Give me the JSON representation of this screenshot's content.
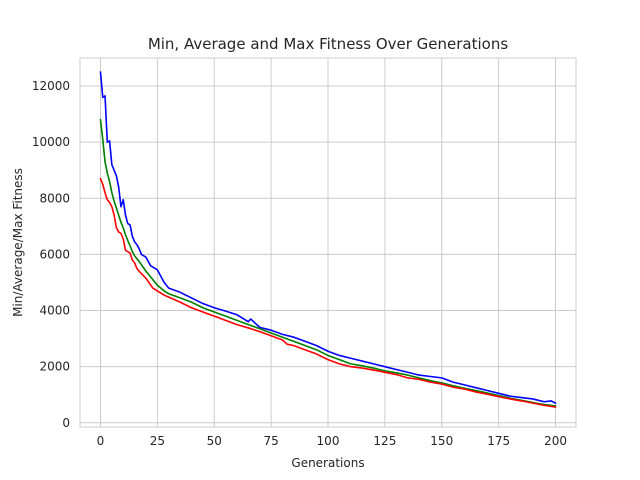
{
  "chart_data": {
    "type": "line",
    "title": "Min, Average and Max Fitness Over Generations",
    "xlabel": "Generations",
    "ylabel": "Min/Average/Max Fitness",
    "xlim": [
      -9,
      209
    ],
    "ylim": [
      -150,
      13000
    ],
    "xticks": [
      0,
      25,
      50,
      75,
      100,
      125,
      150,
      175,
      200
    ],
    "xtick_labels": [
      "0",
      "25",
      "50",
      "75",
      "100",
      "125",
      "150",
      "175",
      "200"
    ],
    "yticks": [
      0,
      2000,
      4000,
      6000,
      8000,
      10000,
      12000
    ],
    "ytick_labels": [
      "0",
      "2000",
      "4000",
      "6000",
      "8000",
      "10000",
      "12000"
    ],
    "grid": true,
    "legend": "none",
    "series": [
      {
        "key": "max",
        "color": "#0000ff",
        "points": [
          [
            0,
            12500
          ],
          [
            1,
            11600
          ],
          [
            2,
            11650
          ],
          [
            3,
            10000
          ],
          [
            4,
            10050
          ],
          [
            5,
            9200
          ],
          [
            6,
            9000
          ],
          [
            7,
            8800
          ],
          [
            8,
            8400
          ],
          [
            9,
            7700
          ],
          [
            10,
            7950
          ],
          [
            11,
            7400
          ],
          [
            12,
            7100
          ],
          [
            13,
            7050
          ],
          [
            14,
            6650
          ],
          [
            15,
            6450
          ],
          [
            16,
            6350
          ],
          [
            17,
            6200
          ],
          [
            18,
            6000
          ],
          [
            20,
            5900
          ],
          [
            22,
            5600
          ],
          [
            25,
            5450
          ],
          [
            28,
            5000
          ],
          [
            30,
            4800
          ],
          [
            35,
            4650
          ],
          [
            40,
            4450
          ],
          [
            45,
            4250
          ],
          [
            50,
            4100
          ],
          [
            55,
            3980
          ],
          [
            60,
            3850
          ],
          [
            63,
            3700
          ],
          [
            65,
            3600
          ],
          [
            66,
            3700
          ],
          [
            70,
            3400
          ],
          [
            75,
            3300
          ],
          [
            80,
            3150
          ],
          [
            85,
            3050
          ],
          [
            90,
            2900
          ],
          [
            95,
            2750
          ],
          [
            100,
            2550
          ],
          [
            105,
            2400
          ],
          [
            110,
            2300
          ],
          [
            115,
            2200
          ],
          [
            120,
            2100
          ],
          [
            125,
            2000
          ],
          [
            130,
            1900
          ],
          [
            135,
            1800
          ],
          [
            140,
            1700
          ],
          [
            145,
            1650
          ],
          [
            150,
            1600
          ],
          [
            155,
            1450
          ],
          [
            160,
            1350
          ],
          [
            165,
            1250
          ],
          [
            170,
            1150
          ],
          [
            175,
            1050
          ],
          [
            180,
            950
          ],
          [
            185,
            900
          ],
          [
            190,
            850
          ],
          [
            195,
            750
          ],
          [
            198,
            780
          ],
          [
            200,
            700
          ]
        ]
      },
      {
        "key": "average",
        "color": "#008000",
        "points": [
          [
            0,
            10800
          ],
          [
            1,
            10100
          ],
          [
            2,
            9300
          ],
          [
            3,
            8900
          ],
          [
            4,
            8600
          ],
          [
            5,
            8200
          ],
          [
            6,
            7900
          ],
          [
            7,
            7650
          ],
          [
            8,
            7400
          ],
          [
            9,
            7150
          ],
          [
            10,
            6950
          ],
          [
            11,
            6700
          ],
          [
            12,
            6500
          ],
          [
            13,
            6300
          ],
          [
            14,
            6100
          ],
          [
            15,
            5950
          ],
          [
            17,
            5750
          ],
          [
            20,
            5400
          ],
          [
            23,
            5100
          ],
          [
            25,
            4900
          ],
          [
            28,
            4700
          ],
          [
            30,
            4600
          ],
          [
            35,
            4450
          ],
          [
            40,
            4300
          ],
          [
            45,
            4100
          ],
          [
            50,
            3950
          ],
          [
            55,
            3800
          ],
          [
            60,
            3650
          ],
          [
            65,
            3500
          ],
          [
            70,
            3350
          ],
          [
            75,
            3200
          ],
          [
            80,
            3050
          ],
          [
            85,
            2900
          ],
          [
            90,
            2750
          ],
          [
            95,
            2600
          ],
          [
            100,
            2400
          ],
          [
            105,
            2250
          ],
          [
            110,
            2100
          ],
          [
            115,
            2030
          ],
          [
            120,
            1950
          ],
          [
            125,
            1850
          ],
          [
            130,
            1780
          ],
          [
            135,
            1700
          ],
          [
            140,
            1600
          ],
          [
            145,
            1500
          ],
          [
            150,
            1420
          ],
          [
            155,
            1320
          ],
          [
            160,
            1230
          ],
          [
            165,
            1150
          ],
          [
            170,
            1060
          ],
          [
            175,
            970
          ],
          [
            180,
            880
          ],
          [
            185,
            800
          ],
          [
            190,
            720
          ],
          [
            195,
            650
          ],
          [
            200,
            600
          ]
        ]
      },
      {
        "key": "min",
        "color": "#ff0000",
        "points": [
          [
            0,
            8700
          ],
          [
            1,
            8500
          ],
          [
            2,
            8200
          ],
          [
            3,
            7950
          ],
          [
            4,
            7850
          ],
          [
            5,
            7700
          ],
          [
            6,
            7400
          ],
          [
            7,
            6950
          ],
          [
            8,
            6800
          ],
          [
            9,
            6750
          ],
          [
            10,
            6550
          ],
          [
            11,
            6150
          ],
          [
            12,
            6100
          ],
          [
            13,
            6050
          ],
          [
            14,
            5800
          ],
          [
            15,
            5700
          ],
          [
            16,
            5500
          ],
          [
            17,
            5400
          ],
          [
            20,
            5150
          ],
          [
            23,
            4800
          ],
          [
            25,
            4700
          ],
          [
            28,
            4550
          ],
          [
            30,
            4480
          ],
          [
            35,
            4300
          ],
          [
            40,
            4100
          ],
          [
            45,
            3950
          ],
          [
            50,
            3800
          ],
          [
            55,
            3650
          ],
          [
            60,
            3500
          ],
          [
            65,
            3380
          ],
          [
            70,
            3250
          ],
          [
            75,
            3100
          ],
          [
            80,
            2950
          ],
          [
            82,
            2800
          ],
          [
            85,
            2750
          ],
          [
            90,
            2600
          ],
          [
            95,
            2450
          ],
          [
            100,
            2250
          ],
          [
            105,
            2100
          ],
          [
            110,
            2000
          ],
          [
            115,
            1950
          ],
          [
            120,
            1880
          ],
          [
            125,
            1800
          ],
          [
            130,
            1720
          ],
          [
            135,
            1600
          ],
          [
            140,
            1550
          ],
          [
            145,
            1450
          ],
          [
            150,
            1380
          ],
          [
            155,
            1270
          ],
          [
            160,
            1200
          ],
          [
            165,
            1100
          ],
          [
            170,
            1020
          ],
          [
            175,
            930
          ],
          [
            180,
            850
          ],
          [
            185,
            780
          ],
          [
            190,
            700
          ],
          [
            195,
            620
          ],
          [
            200,
            560
          ]
        ]
      }
    ]
  }
}
